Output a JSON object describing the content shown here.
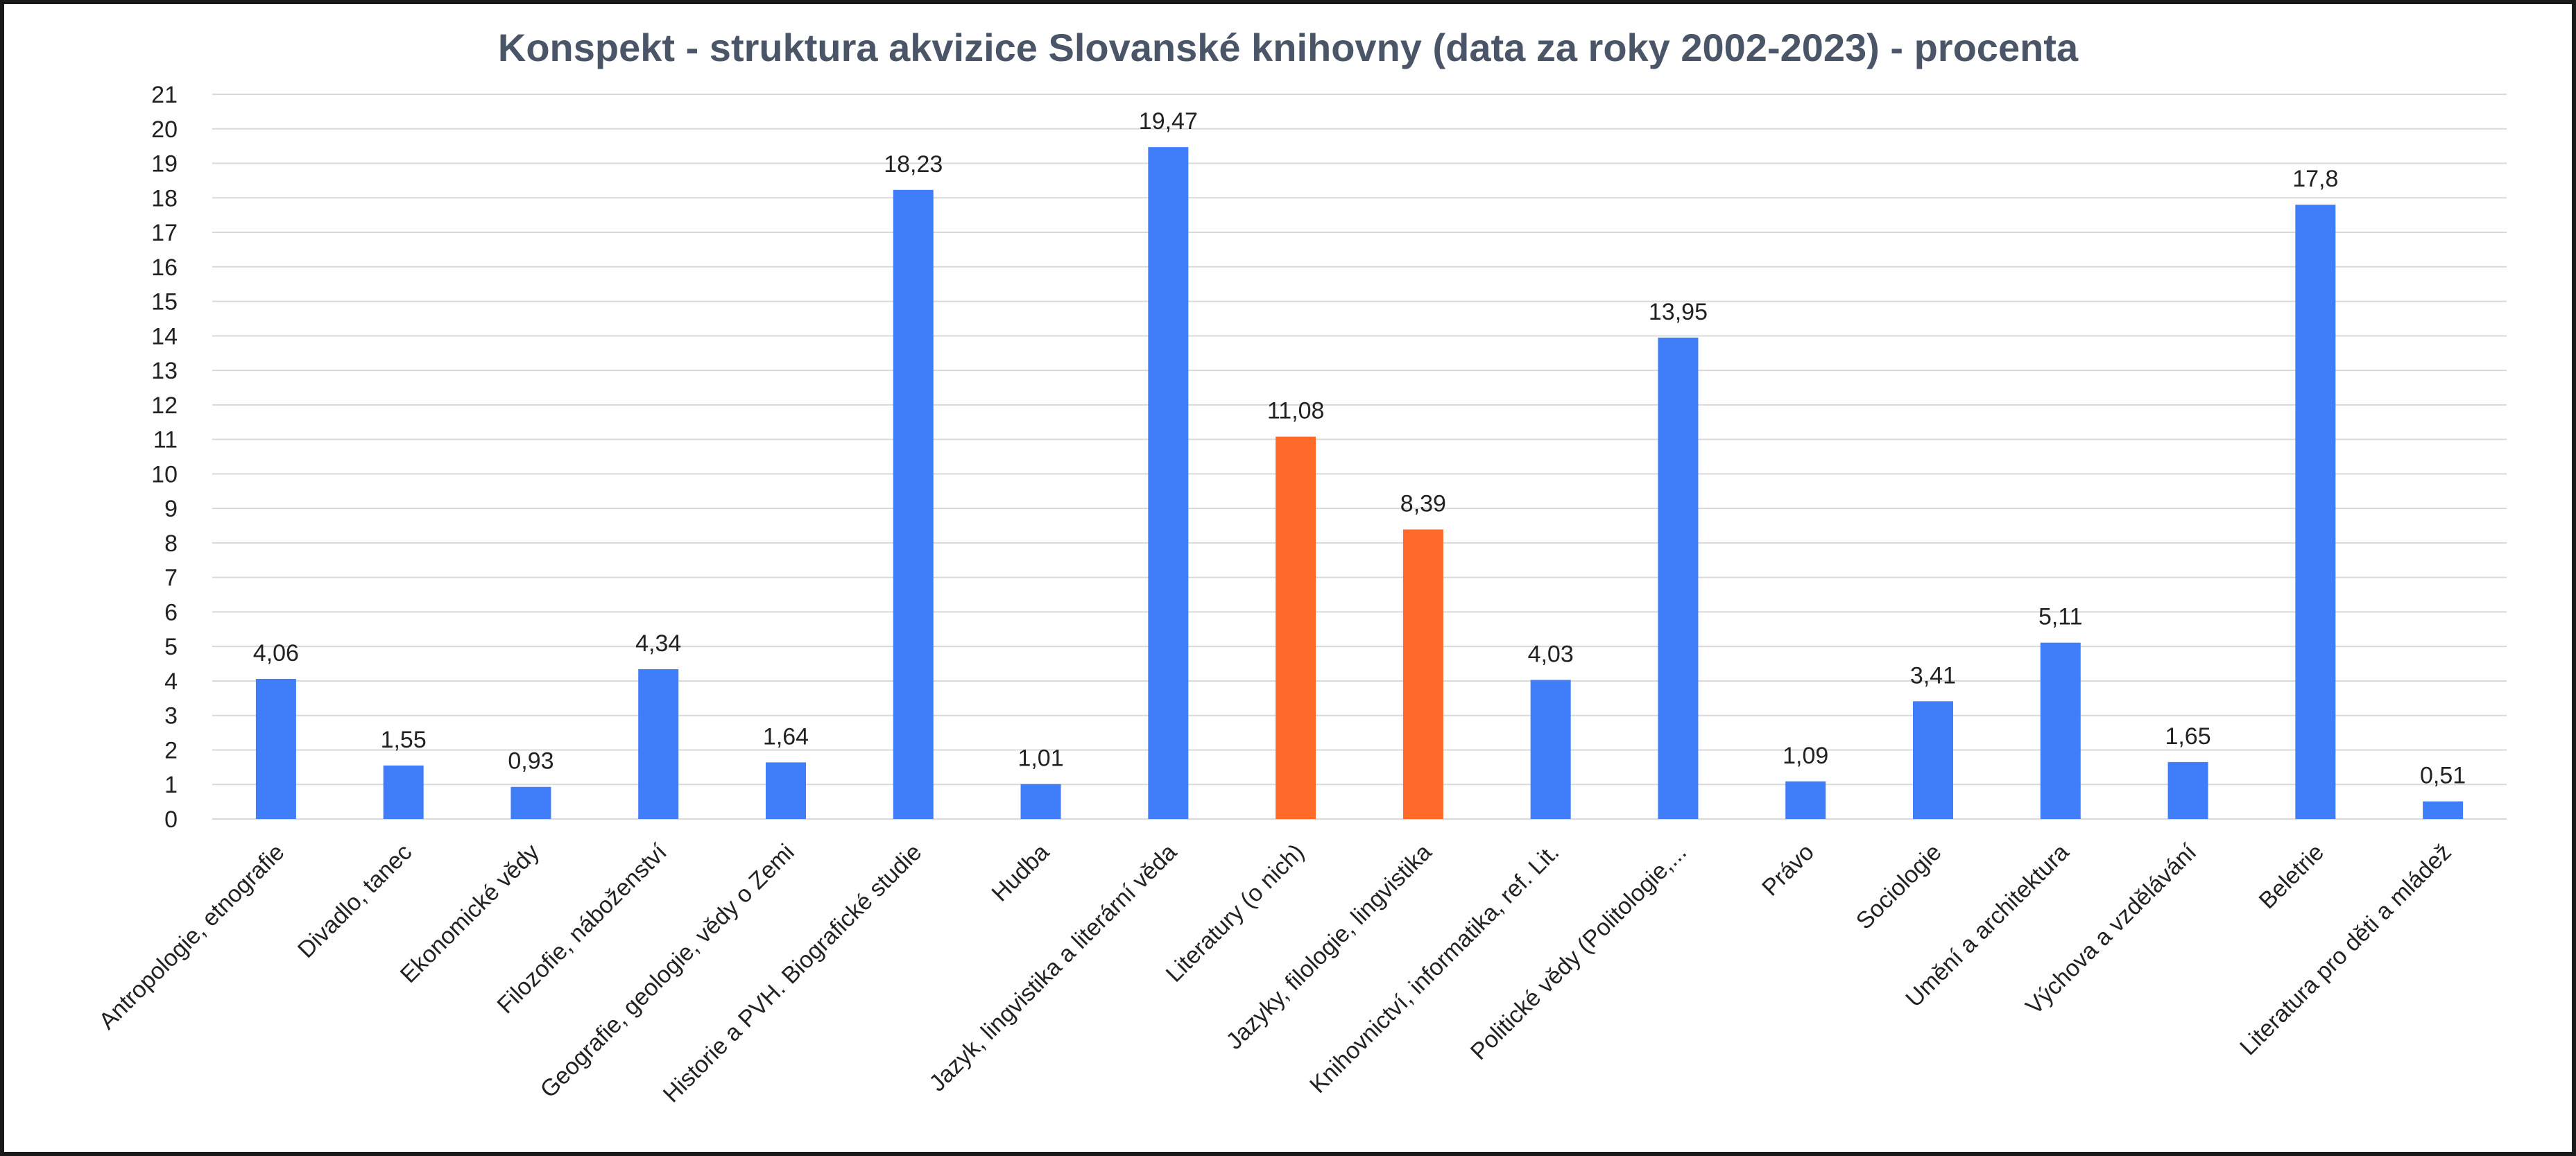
{
  "chart_data": {
    "type": "bar",
    "title": "Konspekt - struktura akvizice Slovanské knihovny (data za roky 2002-2023) - procenta",
    "xlabel": "",
    "ylabel": "",
    "ylim": [
      0,
      21
    ],
    "yticks": [
      "0",
      "1",
      "2",
      "3",
      "4",
      "5",
      "6",
      "7",
      "8",
      "9",
      "10",
      "11",
      "12",
      "13",
      "14",
      "15",
      "16",
      "17",
      "18",
      "19",
      "20",
      "21"
    ],
    "grid": true,
    "legend": "none",
    "categories": [
      "Antropologie, etnografie",
      "Divadlo, tanec",
      "Ekonomické vědy",
      "Filozofie, náboženství",
      "Geografie, geologie, vědy o Zemi",
      "Historie a PVH. Biografické studie",
      "Hudba",
      "Jazyk, lingvistika a literární věda",
      "Literatury (o nich)",
      "Jazyky, filologie, lingvistika",
      "Knihovnictví, informatika, ref. Lit.",
      "Politické vědy (Politologie,...",
      "Právo",
      "Sociologie",
      "Umění a architektura",
      "Výchova a vzdělávání",
      "Beletrie",
      "Literatura pro děti a mládež"
    ],
    "values": [
      4.06,
      1.55,
      0.93,
      4.34,
      1.64,
      18.23,
      1.01,
      19.47,
      11.08,
      8.39,
      4.03,
      13.95,
      1.09,
      3.41,
      5.11,
      1.65,
      17.8,
      0.51
    ],
    "value_labels": [
      "4,06",
      "1,55",
      "0,93",
      "4,34",
      "1,64",
      "18,23",
      "1,01",
      "19,47",
      "11,08",
      "8,39",
      "4,03",
      "13,95",
      "1,09",
      "3,41",
      "5,11",
      "1,65",
      "17,8",
      "0,51"
    ],
    "bar_colors": [
      "#3f7ef8",
      "#3f7ef8",
      "#3f7ef8",
      "#3f7ef8",
      "#3f7ef8",
      "#3f7ef8",
      "#3f7ef8",
      "#3f7ef8",
      "#ff6a2b",
      "#ff6a2b",
      "#3f7ef8",
      "#3f7ef8",
      "#3f7ef8",
      "#3f7ef8",
      "#3f7ef8",
      "#3f7ef8",
      "#3f7ef8",
      "#3f7ef8"
    ],
    "colors": {
      "primary": "#3f7ef8",
      "highlight": "#ff6a2b",
      "grid": "#d9d9d9",
      "title": "#4a5568"
    }
  }
}
